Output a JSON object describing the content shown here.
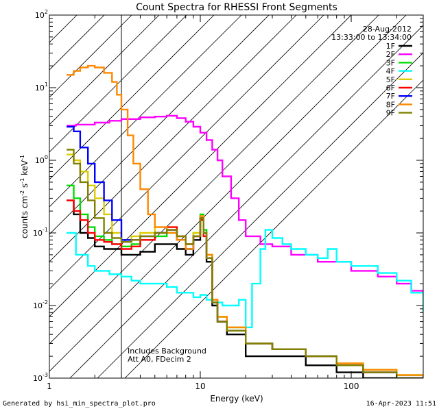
{
  "chart_data": {
    "type": "line",
    "title": "Count Spectra for RHESSI Front Segments",
    "xlabel": "Energy (keV)",
    "ylabel_parts": [
      "counts cm",
      "-2",
      " s",
      "-1",
      " keV",
      "-1"
    ],
    "xscale": "log",
    "yscale": "log",
    "xlim": [
      1.0,
      300.0
    ],
    "ylim": [
      0.001,
      100.0
    ],
    "x_tick_labels": [
      "1",
      "10",
      "100"
    ],
    "y_tick_labels": [
      {
        "base": "10",
        "exp": "-3",
        "value": 0.001
      },
      {
        "base": "10",
        "exp": "-2",
        "value": 0.01
      },
      {
        "base": "10",
        "exp": "-1",
        "value": 0.1
      },
      {
        "base": "10",
        "exp": "0",
        "value": 1
      },
      {
        "base": "10",
        "exp": "1",
        "value": 10
      },
      {
        "base": "10",
        "exp": "2",
        "value": 100
      }
    ],
    "date": "28-Aug-2012",
    "time_range": "13:33:00 to 13:34:00",
    "hatched_region_kev": [
      1.0,
      3.0
    ],
    "annotations": [
      "Includes Background",
      "Att A0, FDecim 2"
    ],
    "series": [
      {
        "name": "1F",
        "color": "#000000",
        "x": [
          1.3,
          1.45,
          1.6,
          1.8,
          2.0,
          2.3,
          2.6,
          3.0,
          3.5,
          4.0,
          5.0,
          6.0,
          7.0,
          8.0,
          9.0,
          10.0,
          10.5,
          11.0,
          12.0,
          13.0,
          15.0,
          20.0,
          30.0,
          50.0,
          80.0,
          120.0,
          200.0,
          300.0
        ],
        "y": [
          0.28,
          0.18,
          0.1,
          0.085,
          0.065,
          0.06,
          0.06,
          0.05,
          0.05,
          0.055,
          0.07,
          0.07,
          0.06,
          0.05,
          0.08,
          0.16,
          0.1,
          0.04,
          0.01,
          0.006,
          0.004,
          0.002,
          0.002,
          0.0015,
          0.0012,
          0.001,
          0.001,
          0.001
        ]
      },
      {
        "name": "2F",
        "color": "#ff00ff",
        "x": [
          1.3,
          1.5,
          2.0,
          2.5,
          3.0,
          4.0,
          5.0,
          6.0,
          7.0,
          8.0,
          9.0,
          10.0,
          11.0,
          12.0,
          13.0,
          14.0,
          16.0,
          18.0,
          20.0,
          25.0,
          30.0,
          40.0,
          60.0,
          100.0,
          150.0,
          200.0,
          250.0,
          300.0
        ],
        "y": [
          3.0,
          3.1,
          3.3,
          3.5,
          3.7,
          3.9,
          4.0,
          4.1,
          3.8,
          3.4,
          2.9,
          2.4,
          1.9,
          1.4,
          1.0,
          0.6,
          0.3,
          0.15,
          0.09,
          0.07,
          0.065,
          0.05,
          0.04,
          0.03,
          0.025,
          0.02,
          0.016,
          0.013
        ]
      },
      {
        "name": "3F",
        "color": "#00dd00",
        "x": [
          1.3,
          1.45,
          1.6,
          1.8,
          2.0,
          2.3,
          2.6,
          3.0,
          3.5,
          4.0,
          5.0,
          6.0,
          7.0,
          8.0,
          9.0,
          10.0,
          10.5,
          11.0,
          12.0,
          13.0,
          15.0,
          20.0,
          30.0,
          50.0,
          80.0,
          120.0,
          200.0,
          300.0
        ],
        "y": [
          0.45,
          0.3,
          0.18,
          0.12,
          0.09,
          0.08,
          0.07,
          0.065,
          0.07,
          0.08,
          0.09,
          0.1,
          0.08,
          0.06,
          0.1,
          0.18,
          0.11,
          0.05,
          0.012,
          0.007,
          0.005,
          0.003,
          0.0025,
          0.002,
          0.0015,
          0.0013,
          0.0011,
          0.001
        ]
      },
      {
        "name": "4F",
        "color": "#00ffff",
        "x": [
          1.3,
          1.5,
          1.8,
          2.0,
          2.5,
          3.0,
          3.5,
          4.0,
          5.0,
          6.0,
          7.0,
          8.0,
          9.0,
          10.0,
          11.0,
          12.0,
          14.0,
          16.0,
          18.0,
          20.0,
          22.0,
          25.0,
          27.0,
          30.0,
          35.0,
          40.0,
          50.0,
          60.0,
          70.0,
          80.0,
          100.0,
          150.0,
          200.0,
          250.0,
          300.0
        ],
        "y": [
          0.1,
          0.05,
          0.035,
          0.03,
          0.027,
          0.025,
          0.022,
          0.02,
          0.02,
          0.018,
          0.015,
          0.015,
          0.013,
          0.014,
          0.012,
          0.011,
          0.01,
          0.01,
          0.012,
          0.005,
          0.02,
          0.06,
          0.11,
          0.085,
          0.07,
          0.06,
          0.05,
          0.045,
          0.06,
          0.04,
          0.035,
          0.028,
          0.022,
          0.015,
          0.008
        ]
      },
      {
        "name": "5F",
        "color": "#ddcc00",
        "x": [
          1.3,
          1.45,
          1.6,
          1.8,
          2.0,
          2.3,
          2.6,
          3.0,
          3.5,
          4.0,
          5.0,
          6.0,
          7.0,
          8.0,
          9.0,
          10.0,
          10.5,
          11.0,
          12.0,
          13.0,
          15.0,
          20.0,
          30.0,
          50.0,
          80.0,
          120.0,
          200.0,
          300.0
        ],
        "y": [
          1.2,
          1.0,
          0.7,
          0.45,
          0.3,
          0.18,
          0.1,
          0.08,
          0.09,
          0.1,
          0.12,
          0.12,
          0.09,
          0.07,
          0.1,
          0.17,
          0.1,
          0.05,
          0.012,
          0.007,
          0.005,
          0.003,
          0.0025,
          0.002,
          0.0016,
          0.0013,
          0.0011,
          0.001
        ]
      },
      {
        "name": "6F",
        "color": "#ff0000",
        "x": [
          1.3,
          1.45,
          1.6,
          1.8,
          2.0,
          2.3,
          2.6,
          3.0,
          3.5,
          4.0,
          5.0,
          6.0,
          7.0,
          8.0,
          9.0,
          10.0,
          10.5,
          11.0,
          12.0,
          13.0,
          15.0,
          20.0,
          30.0,
          50.0,
          80.0,
          120.0,
          200.0,
          300.0
        ],
        "y": [
          0.28,
          0.2,
          0.15,
          0.1,
          0.08,
          0.075,
          0.07,
          0.06,
          0.065,
          0.08,
          0.1,
          0.12,
          0.09,
          0.07,
          0.09,
          0.15,
          0.09,
          0.045,
          0.011,
          0.006,
          0.0045,
          0.003,
          0.0025,
          0.002,
          0.0015,
          0.0012,
          0.001,
          0.001
        ]
      },
      {
        "name": "7F",
        "color": "#0000ff",
        "x": [
          1.3,
          1.45,
          1.6,
          1.8,
          2.0,
          2.3,
          2.6,
          3.0,
          3.5,
          4.0,
          5.0,
          6.0,
          7.0,
          8.0,
          9.0,
          10.0,
          10.5,
          11.0,
          12.0,
          13.0,
          15.0,
          20.0,
          30.0,
          50.0,
          80.0,
          120.0,
          200.0,
          300.0
        ],
        "y": [
          2.9,
          2.5,
          1.5,
          0.9,
          0.5,
          0.28,
          0.15,
          0.08,
          0.08,
          0.09,
          0.1,
          0.11,
          0.08,
          0.06,
          0.09,
          0.16,
          0.1,
          0.045,
          0.011,
          0.006,
          0.0045,
          0.003,
          0.0025,
          0.002,
          0.0015,
          0.0012,
          0.001,
          0.001
        ]
      },
      {
        "name": "8F",
        "color": "#ff8800",
        "x": [
          1.3,
          1.45,
          1.6,
          1.8,
          2.0,
          2.3,
          2.6,
          2.8,
          3.0,
          3.3,
          3.6,
          4.0,
          4.5,
          5.0,
          6.0,
          7.0,
          8.0,
          9.0,
          10.0,
          10.5,
          11.0,
          12.0,
          13.0,
          15.0,
          20.0,
          30.0,
          50.0,
          80.0,
          120.0,
          200.0,
          300.0
        ],
        "y": [
          15.0,
          17.0,
          19.0,
          20.0,
          19.0,
          16.0,
          12.0,
          8.0,
          5.0,
          2.2,
          0.9,
          0.4,
          0.18,
          0.12,
          0.1,
          0.08,
          0.06,
          0.09,
          0.17,
          0.1,
          0.05,
          0.012,
          0.007,
          0.005,
          0.003,
          0.0025,
          0.002,
          0.0016,
          0.0013,
          0.0011,
          0.001
        ]
      },
      {
        "name": "9F",
        "color": "#808000",
        "x": [
          1.3,
          1.45,
          1.6,
          1.8,
          2.0,
          2.3,
          2.6,
          3.0,
          3.5,
          4.0,
          5.0,
          6.0,
          7.0,
          8.0,
          9.0,
          10.0,
          10.5,
          11.0,
          12.0,
          13.0,
          15.0,
          20.0,
          30.0,
          50.0,
          80.0,
          120.0,
          200.0,
          300.0
        ],
        "y": [
          1.4,
          0.9,
          0.5,
          0.28,
          0.16,
          0.1,
          0.085,
          0.075,
          0.08,
          0.09,
          0.1,
          0.11,
          0.09,
          0.07,
          0.09,
          0.16,
          0.1,
          0.045,
          0.011,
          0.006,
          0.0045,
          0.003,
          0.0025,
          0.002,
          0.0015,
          0.0012,
          0.001,
          0.001
        ]
      }
    ]
  },
  "footer": {
    "generated_by": "Generated by hsi_min_spectra_plot.pro",
    "timestamp": "16-Apr-2023 11:51"
  }
}
